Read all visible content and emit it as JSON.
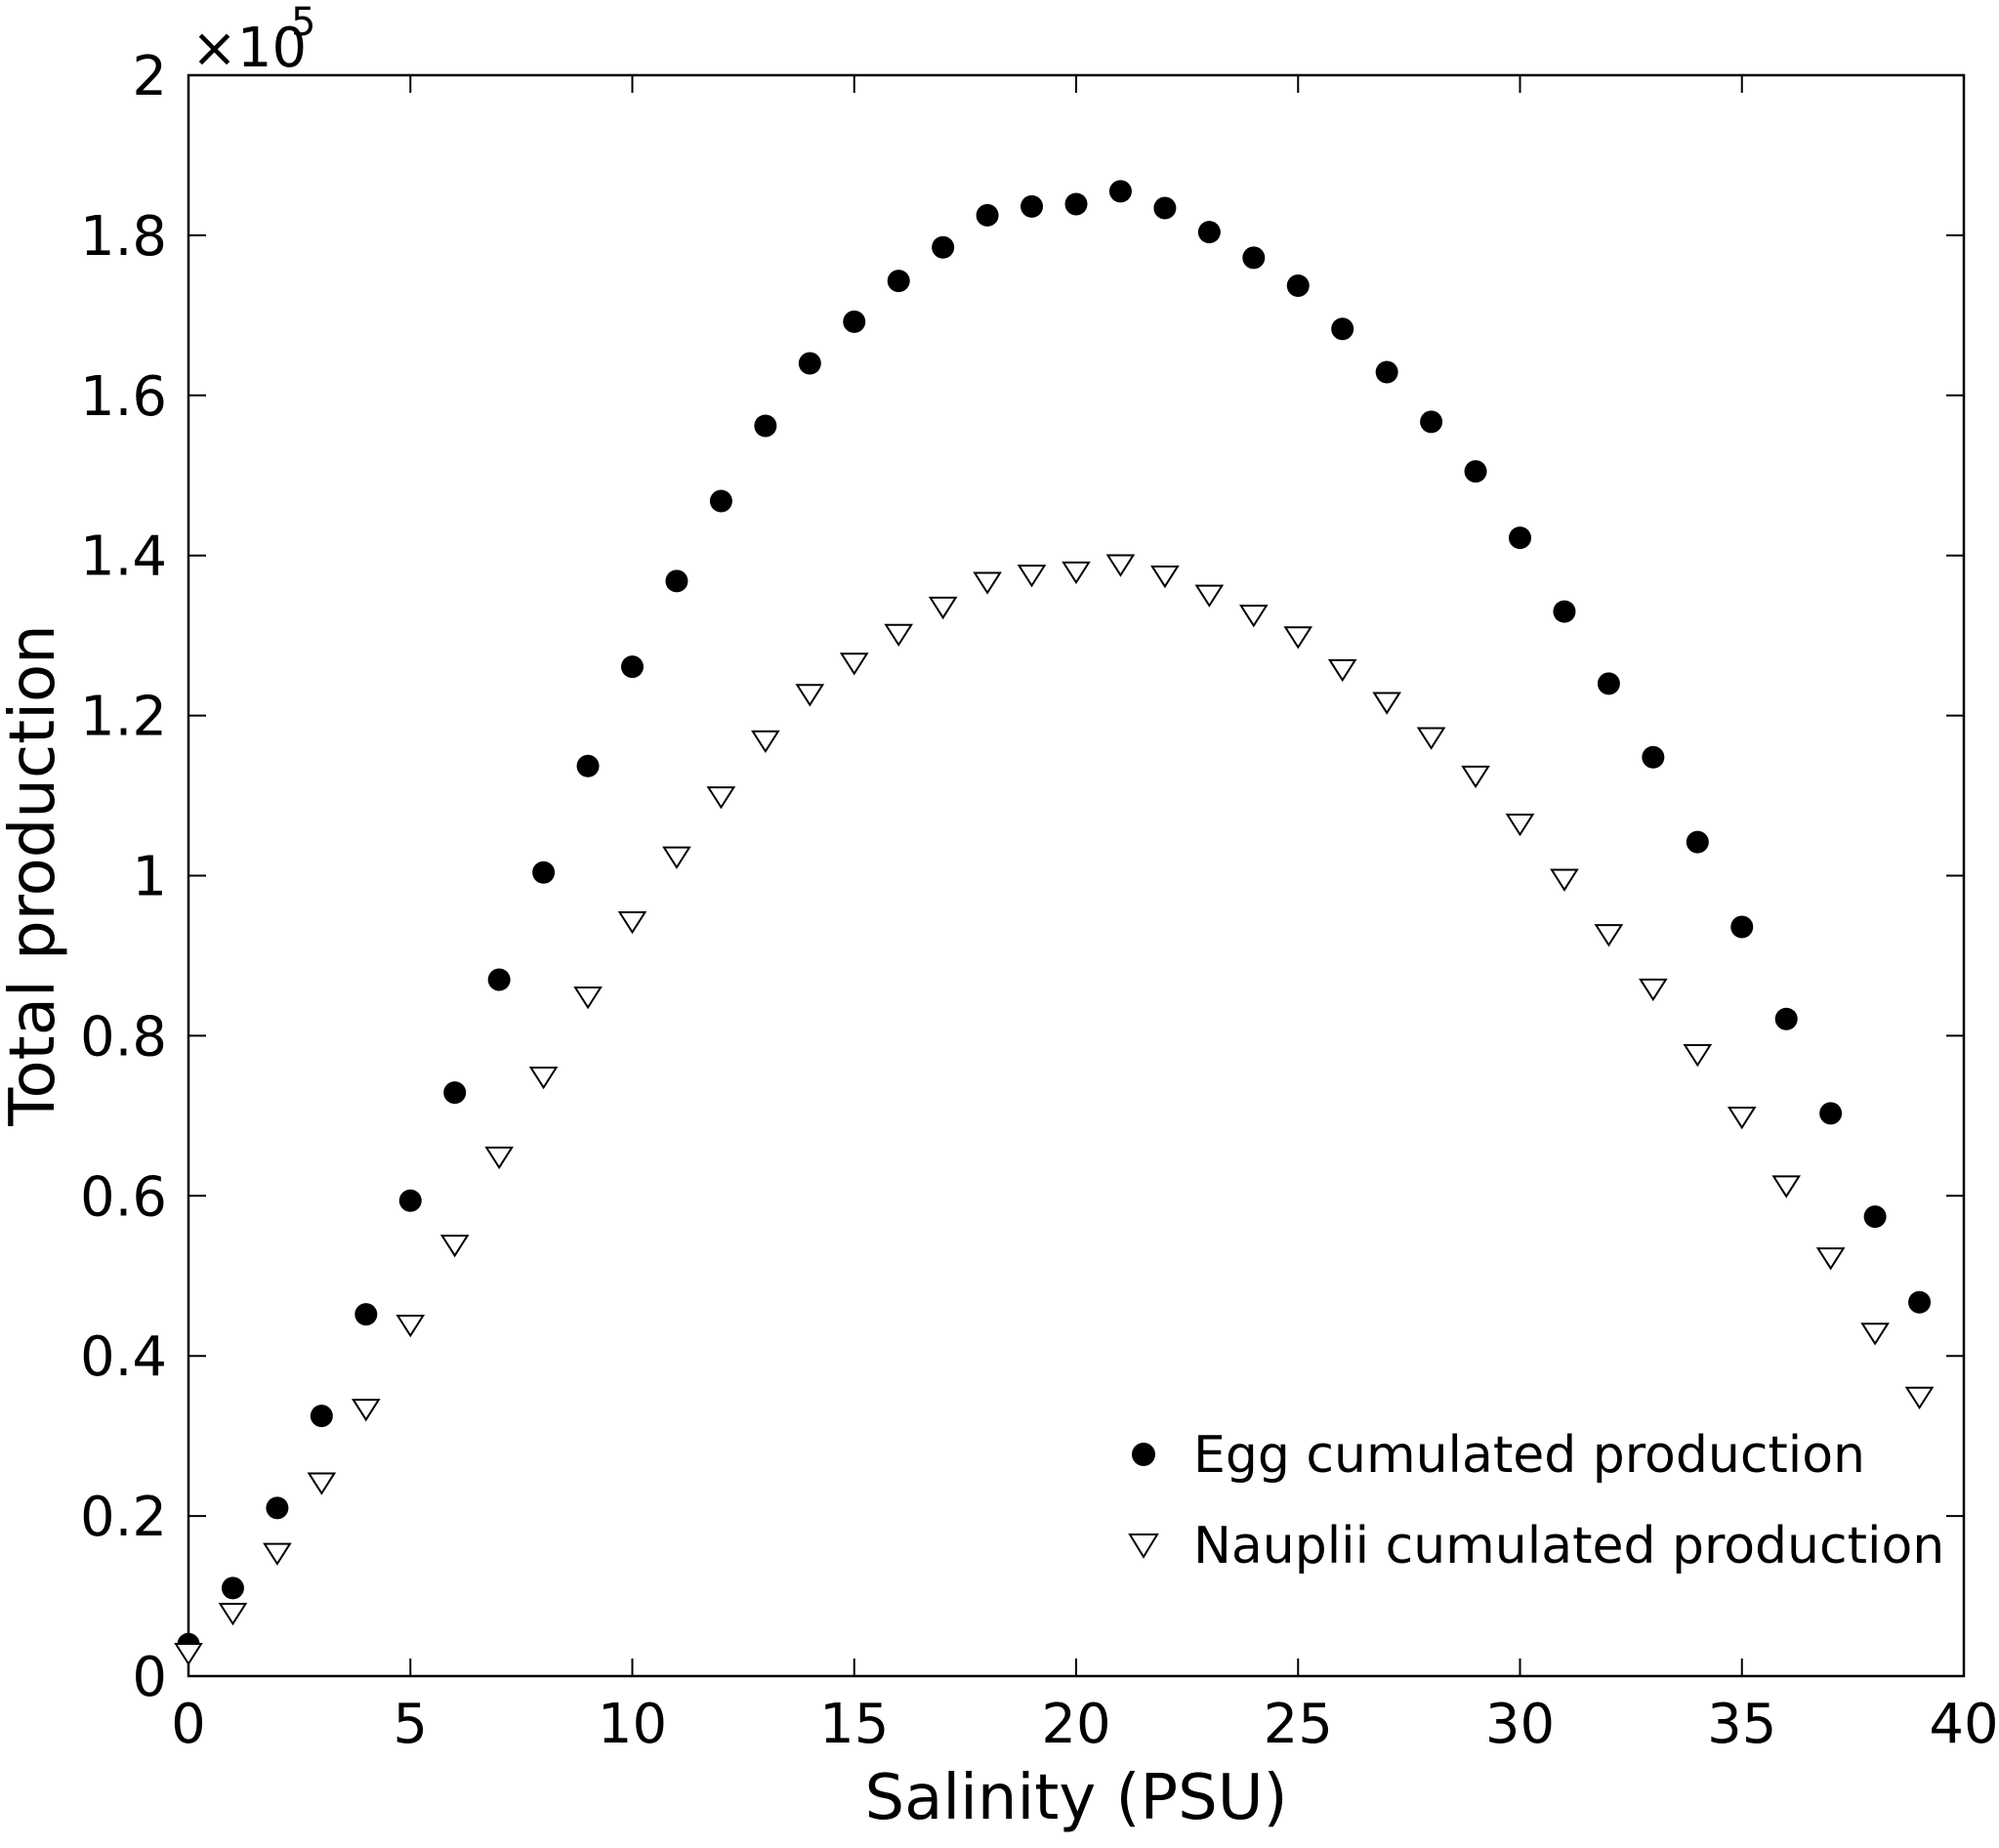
{
  "chart_data": {
    "type": "scatter",
    "xlabel": "Salinity (PSU)",
    "ylabel": "Total production",
    "xlim": [
      0,
      40
    ],
    "ylim": [
      0,
      2
    ],
    "y_multiplier_label": "×10",
    "y_multiplier_exponent": "5",
    "xticks": [
      0,
      5,
      10,
      15,
      20,
      25,
      30,
      35,
      40
    ],
    "xtick_labels": [
      "0",
      "5",
      "10",
      "15",
      "20",
      "25",
      "30",
      "35",
      "40"
    ],
    "yticks": [
      0,
      0.2,
      0.4,
      0.6,
      0.8,
      1,
      1.2,
      1.4,
      1.6,
      1.8,
      2
    ],
    "ytick_labels": [
      "0",
      "0.2",
      "0.4",
      "0.6",
      "0.8",
      "1",
      "1.2",
      "1.4",
      "1.6",
      "1.8",
      "2"
    ],
    "grid": false,
    "legend_position": "bottom-right",
    "series": [
      {
        "name": "Egg cumulated production",
        "marker": "filled-circle",
        "color": "#000000",
        "x": [
          0,
          1,
          2,
          3,
          4,
          5,
          6,
          7,
          8,
          9,
          10,
          11,
          12,
          13,
          14,
          15,
          16,
          17,
          18,
          19,
          20,
          21,
          22,
          23,
          24,
          25,
          26,
          27,
          28,
          29,
          30,
          31,
          32,
          33,
          34,
          35,
          36,
          37,
          38,
          39
        ],
        "values": [
          0.04,
          0.11,
          0.21,
          0.325,
          0.452,
          0.594,
          0.729,
          0.87,
          1.004,
          1.137,
          1.261,
          1.368,
          1.468,
          1.562,
          1.64,
          1.692,
          1.743,
          1.785,
          1.825,
          1.836,
          1.839,
          1.855,
          1.834,
          1.804,
          1.772,
          1.737,
          1.683,
          1.629,
          1.567,
          1.505,
          1.422,
          1.33,
          1.24,
          1.148,
          1.042,
          0.936,
          0.821,
          0.703,
          0.574,
          0.467
        ]
      },
      {
        "name": "Nauplii cumulated production",
        "marker": "open-triangle-down",
        "color": "#000000",
        "x": [
          0,
          1,
          2,
          3,
          4,
          5,
          6,
          7,
          8,
          9,
          10,
          11,
          12,
          13,
          14,
          15,
          16,
          17,
          18,
          19,
          20,
          21,
          22,
          23,
          24,
          25,
          26,
          27,
          28,
          29,
          30,
          31,
          32,
          33,
          34,
          35,
          36,
          37,
          38,
          39
        ],
        "values": [
          0.03,
          0.08,
          0.155,
          0.243,
          0.335,
          0.44,
          0.54,
          0.65,
          0.75,
          0.85,
          0.944,
          1.025,
          1.1,
          1.17,
          1.228,
          1.267,
          1.303,
          1.337,
          1.368,
          1.377,
          1.381,
          1.39,
          1.376,
          1.352,
          1.327,
          1.3,
          1.259,
          1.218,
          1.174,
          1.126,
          1.066,
          0.997,
          0.928,
          0.86,
          0.778,
          0.7,
          0.614,
          0.524,
          0.43,
          0.35
        ]
      }
    ]
  }
}
